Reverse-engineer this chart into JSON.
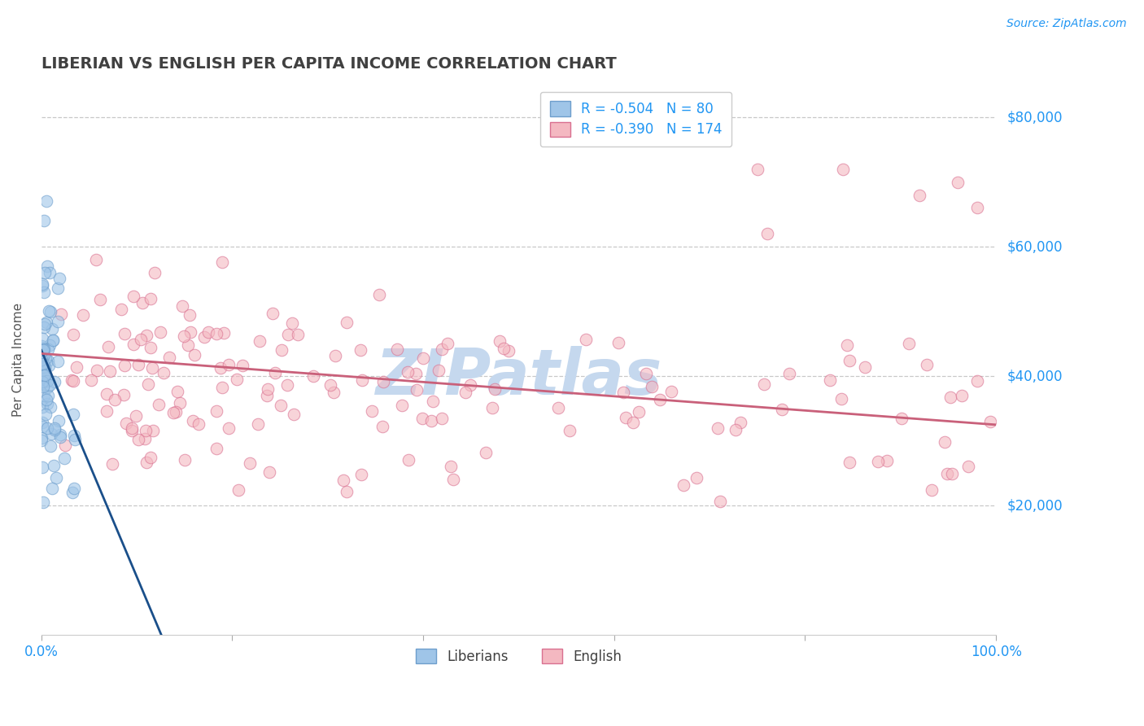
{
  "title": "LIBERIAN VS ENGLISH PER CAPITA INCOME CORRELATION CHART",
  "source": "Source: ZipAtlas.com",
  "ylabel": "Per Capita Income",
  "xlim": [
    0,
    100
  ],
  "ylim": [
    0,
    85000
  ],
  "legend_r_blue": "-0.504",
  "legend_n_blue": "80",
  "legend_r_pink": "-0.390",
  "legend_n_pink": "174",
  "blue_color": "#9fc5e8",
  "blue_edge": "#6d9ecc",
  "pink_color": "#f4b8c1",
  "pink_edge": "#d97090",
  "trendline_blue_color": "#1a4f8a",
  "trendline_pink_color": "#c9607a",
  "watermark": "ZIPatlas",
  "watermark_color": "#c5d8ee",
  "background_color": "#ffffff",
  "grid_color": "#bbbbbb",
  "title_color": "#404040",
  "axis_label_color": "#2196F3"
}
